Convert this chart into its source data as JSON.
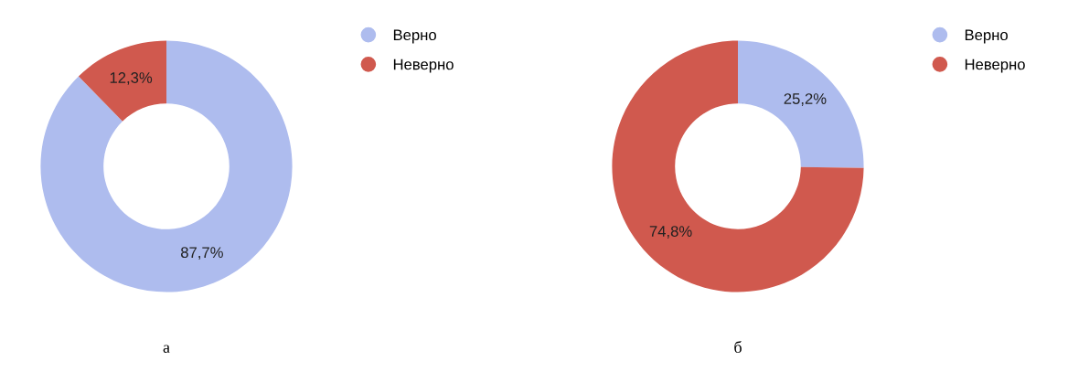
{
  "chart_data": [
    {
      "type": "donut",
      "xlabel": "а",
      "categories": [
        "Верно",
        "Неверно"
      ],
      "values": [
        87.7,
        12.3
      ],
      "colors": [
        "#aebcee",
        "#d0594e"
      ],
      "value_labels": [
        "87,7%",
        "12,3%"
      ],
      "legend": "right"
    },
    {
      "type": "donut",
      "xlabel": "б",
      "categories": [
        "Верно",
        "Неверно"
      ],
      "values": [
        25.2,
        74.8
      ],
      "colors": [
        "#aebcee",
        "#d0594e"
      ],
      "value_labels": [
        "25,2%",
        "74,8%"
      ],
      "legend": "right"
    }
  ]
}
